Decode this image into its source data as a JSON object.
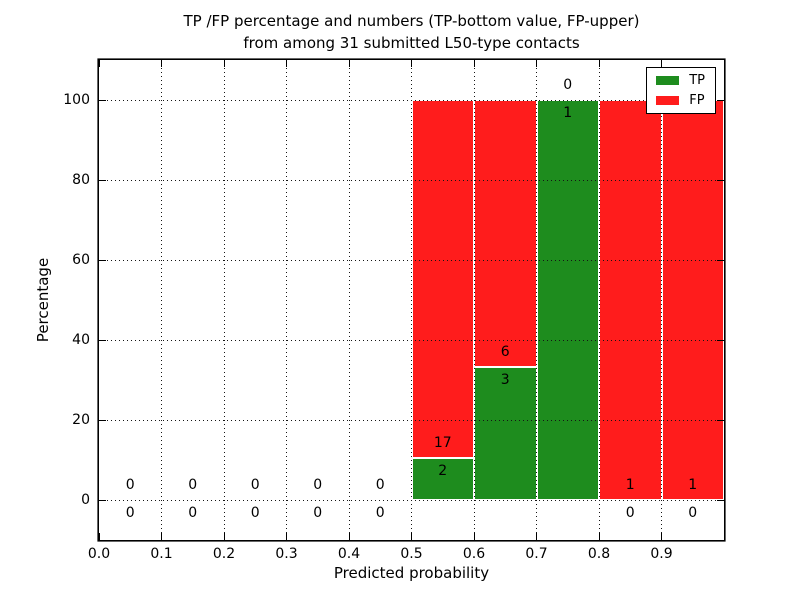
{
  "title": {
    "line1": "TP /FP percentage and numbers (TP-bottom value, FP-upper)",
    "line2": "from among 31 submitted L50-type contacts"
  },
  "chart_data": {
    "type": "bar",
    "stacked": true,
    "title": "TP /FP percentage and numbers (TP-bottom value, FP-upper) from among 31 submitted L50-type contacts",
    "xlabel": "Predicted probability",
    "ylabel": "Percentage",
    "xlim": [
      0.0,
      1.0
    ],
    "ylim": [
      -10,
      110
    ],
    "grid": "dotted",
    "legend_position": "upper right",
    "total_contacts": 31,
    "colors": {
      "tp": "#1e8c1e",
      "fp": "#ff1c1c"
    },
    "x_ticks": [
      {
        "value": 0.0,
        "label": "0.0"
      },
      {
        "value": 0.1,
        "label": "0.1"
      },
      {
        "value": 0.2,
        "label": "0.2"
      },
      {
        "value": 0.3,
        "label": "0.3"
      },
      {
        "value": 0.4,
        "label": "0.4"
      },
      {
        "value": 0.5,
        "label": "0.5"
      },
      {
        "value": 0.6,
        "label": "0.6"
      },
      {
        "value": 0.7,
        "label": "0.7"
      },
      {
        "value": 0.8,
        "label": "0.8"
      },
      {
        "value": 0.9,
        "label": "0.9"
      }
    ],
    "y_ticks": [
      {
        "value": 0,
        "label": "0"
      },
      {
        "value": 20,
        "label": "20"
      },
      {
        "value": 40,
        "label": "40"
      },
      {
        "value": 60,
        "label": "60"
      },
      {
        "value": 80,
        "label": "80"
      },
      {
        "value": 100,
        "label": "100"
      }
    ],
    "legend": [
      {
        "label": "TP",
        "color": "#1e8c1e"
      },
      {
        "label": "FP",
        "color": "#ff1c1c"
      }
    ],
    "bins": [
      {
        "range": [
          0.0,
          0.1
        ],
        "tp": 0,
        "fp": 0,
        "tp_pct": 0,
        "fp_pct": 0
      },
      {
        "range": [
          0.1,
          0.2
        ],
        "tp": 0,
        "fp": 0,
        "tp_pct": 0,
        "fp_pct": 0
      },
      {
        "range": [
          0.2,
          0.3
        ],
        "tp": 0,
        "fp": 0,
        "tp_pct": 0,
        "fp_pct": 0
      },
      {
        "range": [
          0.3,
          0.4
        ],
        "tp": 0,
        "fp": 0,
        "tp_pct": 0,
        "fp_pct": 0
      },
      {
        "range": [
          0.4,
          0.5
        ],
        "tp": 0,
        "fp": 0,
        "tp_pct": 0,
        "fp_pct": 0
      },
      {
        "range": [
          0.5,
          0.6
        ],
        "tp": 2,
        "fp": 17,
        "tp_pct": 10.53,
        "fp_pct": 89.47
      },
      {
        "range": [
          0.6,
          0.7
        ],
        "tp": 3,
        "fp": 6,
        "tp_pct": 33.33,
        "fp_pct": 66.67
      },
      {
        "range": [
          0.7,
          0.8
        ],
        "tp": 1,
        "fp": 0,
        "tp_pct": 100,
        "fp_pct": 0
      },
      {
        "range": [
          0.8,
          0.9
        ],
        "tp": 0,
        "fp": 1,
        "tp_pct": 0,
        "fp_pct": 100
      },
      {
        "range": [
          0.9,
          1.0
        ],
        "tp": 0,
        "fp": 1,
        "tp_pct": 0,
        "fp_pct": 100
      }
    ]
  }
}
